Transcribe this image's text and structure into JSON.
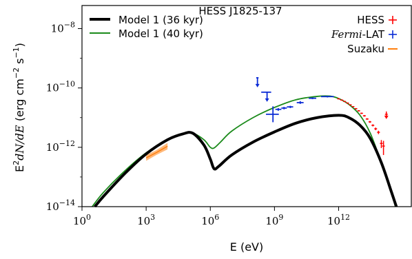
{
  "chart_data": {
    "type": "line",
    "title": "HESS J1825-137",
    "xlabel": "E (eV)",
    "ylabel_parts": [
      "E",
      "2",
      "dN/dE",
      " (erg cm",
      "−2",
      " s",
      "−1",
      ")"
    ],
    "xscale": "log",
    "yscale": "log",
    "xlim": [
      1,
      2500000000000000.0
    ],
    "ylim": [
      1e-14,
      6e-08
    ],
    "grid": false,
    "x_ticks": [
      {
        "value": 1,
        "base": "10",
        "exp": "0"
      },
      {
        "value": 1000,
        "base": "10",
        "exp": "3"
      },
      {
        "value": 1000000,
        "base": "10",
        "exp": "6"
      },
      {
        "value": 1000000000,
        "base": "10",
        "exp": "9"
      },
      {
        "value": 1000000000000,
        "base": "10",
        "exp": "12"
      }
    ],
    "y_ticks": [
      {
        "value": 1e-14,
        "base": "10",
        "exp": "−14"
      },
      {
        "value": 1e-12,
        "base": "10",
        "exp": "−12"
      },
      {
        "value": 1e-10,
        "base": "10",
        "exp": "−10"
      },
      {
        "value": 1e-08,
        "base": "10",
        "exp": "−8"
      }
    ],
    "legend_left": {
      "placement": "top-left",
      "entries": [
        {
          "label": "Model 1 (36 kyr)",
          "color": "#000000"
        },
        {
          "label": "Model 1 (40 kyr)",
          "color": "#1a8a1a"
        }
      ]
    },
    "legend_right": {
      "placement": "top-right",
      "entries": [
        {
          "label_parts": [
            "",
            "",
            "HESS"
          ],
          "color": "#ff0000"
        },
        {
          "label_parts": [
            "",
            "Fermi",
            "-LAT"
          ],
          "color": "#0a2bd6"
        },
        {
          "label_parts": [
            "",
            "",
            "Suzaku"
          ],
          "color": "#ff7f0e"
        }
      ]
    },
    "series": [
      {
        "name": "Model 1 (36 kyr)",
        "color": "#000000",
        "points": [
          [
            4,
            1e-14
          ],
          [
            10,
            2.2e-14
          ],
          [
            100,
            1.3e-13
          ],
          [
            1000,
            6e-13
          ],
          [
            10000,
            1.8e-12
          ],
          [
            50000,
            2.8e-12
          ],
          [
            150000,
            3e-12
          ],
          [
            500000,
            1.2e-12
          ],
          [
            1000000,
            4e-13
          ],
          [
            1500000,
            1.9e-13
          ],
          [
            2500000,
            2.3e-13
          ],
          [
            10000000,
            5.5e-13
          ],
          [
            100000000,
            1.5e-12
          ],
          [
            1000000000,
            3.3e-12
          ],
          [
            10000000000,
            6.5e-12
          ],
          [
            100000000000,
            1e-11
          ],
          [
            1000000000000,
            1.2e-11
          ],
          [
            3000000000000,
            1e-11
          ],
          [
            10000000000000,
            5.5e-12
          ],
          [
            30000000000000,
            2e-12
          ],
          [
            100000000000000,
            3e-13
          ],
          [
            300000000000000,
            3e-14
          ],
          [
            500000000000000,
            1e-14
          ]
        ]
      },
      {
        "name": "Model 1 (40 kyr)",
        "color": "#1a8a1a",
        "points": [
          [
            3,
            1e-14
          ],
          [
            10,
            3e-14
          ],
          [
            100,
            1.6e-13
          ],
          [
            1000,
            6.5e-13
          ],
          [
            10000,
            1.8e-12
          ],
          [
            50000,
            2.8e-12
          ],
          [
            150000,
            3e-12
          ],
          [
            500000,
            1.8e-12
          ],
          [
            1000000,
            1e-12
          ],
          [
            1500000,
            9.5e-13
          ],
          [
            3000000,
            1.5e-12
          ],
          [
            10000000,
            3.5e-12
          ],
          [
            100000000,
            1e-11
          ],
          [
            1000000000,
            2.2e-11
          ],
          [
            10000000000,
            4e-11
          ],
          [
            100000000000,
            5.2e-11
          ],
          [
            400000000000,
            5.3e-11
          ],
          [
            1000000000000,
            4.4e-11
          ],
          [
            3000000000000,
            2.8e-11
          ],
          [
            10000000000000,
            1.2e-11
          ],
          [
            30000000000000,
            3e-12
          ],
          [
            100000000000000,
            3e-13
          ],
          [
            300000000000000,
            3e-14
          ],
          [
            450000000000000,
            1e-14
          ]
        ]
      }
    ],
    "suzaku": {
      "name": "Suzaku",
      "color": "#ff7f0e",
      "band": [
        [
          1000,
          3.5e-13,
          5.5e-13
        ],
        [
          3000,
          5.5e-13,
          8e-13
        ],
        [
          10000,
          8.5e-13,
          1.4e-12
        ]
      ]
    },
    "fermi_points": [
      {
        "x": 850000000.0,
        "y": 1.3e-11,
        "xlo": 400000000.0,
        "xhi": 1600000000.0,
        "ylo": 7e-12,
        "yhi": 2.4e-11,
        "ul": false
      },
      {
        "x": 1500000000.0,
        "y": 1.9e-11,
        "xlo": 1100000000.0,
        "xhi": 2100000000.0,
        "ylo": 1.7e-11,
        "yhi": 2.1e-11,
        "ul": false
      },
      {
        "x": 2800000000.0,
        "y": 2.1e-11,
        "xlo": 2100000000.0,
        "xhi": 3800000000.0,
        "ylo": 1.9e-11,
        "yhi": 2.3e-11,
        "ul": false
      },
      {
        "x": 5500000000.0,
        "y": 2.3e-11,
        "xlo": 3800000000.0,
        "xhi": 7500000000.0,
        "ylo": 2.1e-11,
        "yhi": 2.5e-11,
        "ul": false
      },
      {
        "x": 16000000000.0,
        "y": 3.2e-11,
        "xlo": 11000000000.0,
        "xhi": 23000000000.0,
        "ylo": 2.9e-11,
        "yhi": 3.6e-11,
        "ul": false
      },
      {
        "x": 60000000000.0,
        "y": 4.5e-11,
        "xlo": 40000000000.0,
        "xhi": 90000000000.0,
        "ylo": 4.2e-11,
        "yhi": 4.8e-11,
        "ul": false
      },
      {
        "x": 300000000000.0,
        "y": 5.1e-11,
        "xlo": 150000000000.0,
        "xhi": 600000000000.0,
        "ylo": 4.8e-11,
        "yhi": 5.4e-11,
        "ul": false
      },
      {
        "x": 160000000.0,
        "y": 2.2e-10,
        "xlo": 140000000.0,
        "xhi": 180000000.0,
        "ylo": null,
        "yhi": null,
        "ul": true
      },
      {
        "x": 450000000.0,
        "y": 7.2e-11,
        "xlo": 240000000.0,
        "xhi": 700000000.0,
        "ylo": null,
        "yhi": null,
        "ul": true
      }
    ],
    "hess_points": [
      {
        "x": 1000000000000.0,
        "y": 4.3e-11,
        "err": 0.04,
        "ul": false
      },
      {
        "x": 1400000000000.0,
        "y": 3.9e-11,
        "err": 0.04,
        "ul": false
      },
      {
        "x": 1900000000000.0,
        "y": 3.5e-11,
        "err": 0.04,
        "ul": false
      },
      {
        "x": 2600000000000.0,
        "y": 3.1e-11,
        "err": 0.04,
        "ul": false
      },
      {
        "x": 3500000000000.0,
        "y": 2.7e-11,
        "err": 0.04,
        "ul": false
      },
      {
        "x": 4700000000000.0,
        "y": 2.35e-11,
        "err": 0.04,
        "ul": false
      },
      {
        "x": 6400000000000.0,
        "y": 2e-11,
        "err": 0.05,
        "ul": false
      },
      {
        "x": 8700000000000.0,
        "y": 1.7e-11,
        "err": 0.05,
        "ul": false
      },
      {
        "x": 11800000000000.0,
        "y": 1.4e-11,
        "err": 0.05,
        "ul": false
      },
      {
        "x": 16000000000000.0,
        "y": 1.15e-11,
        "err": 0.06,
        "ul": false
      },
      {
        "x": 21500000000000.0,
        "y": 9e-12,
        "err": 0.06,
        "ul": false
      },
      {
        "x": 29000000000000.0,
        "y": 7.2e-12,
        "err": 0.07,
        "ul": false
      },
      {
        "x": 40000000000000.0,
        "y": 5.5e-12,
        "err": 0.08,
        "ul": false
      },
      {
        "x": 54000000000000.0,
        "y": 4.2e-12,
        "err": 0.1,
        "ul": false
      },
      {
        "x": 73000000000000.0,
        "y": 3.2e-12,
        "err": 0.13,
        "ul": false
      },
      {
        "x": 99000000000000.0,
        "y": 1.35e-12,
        "err": 0.3,
        "ul": false
      },
      {
        "x": 125000000000000.0,
        "y": 1.1e-12,
        "err": 0.5,
        "ul": false
      },
      {
        "x": 170000000000000.0,
        "y": 1.3e-11,
        "err": 0,
        "ul": true
      }
    ]
  }
}
